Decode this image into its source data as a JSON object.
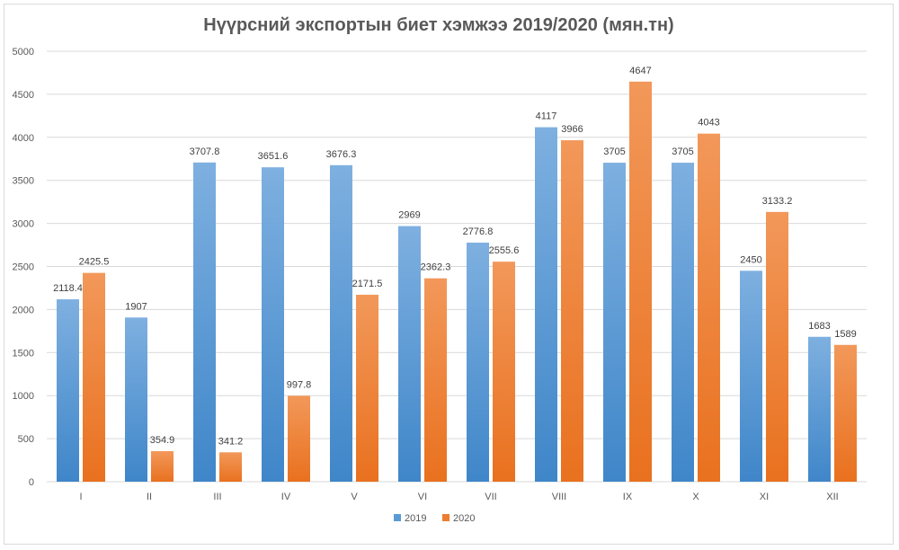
{
  "colors": {
    "series_2019": "#5b9bd5",
    "series_2020": "#ed7d31",
    "grid": "#d9d9d9",
    "axis_text": "#595959"
  },
  "chart_data": {
    "type": "bar",
    "title": "Нүүрсний экспортын биет хэмжээ 2019/2020 (мян.тн)",
    "xlabel": "",
    "ylabel": "",
    "ylim": [
      0,
      5000
    ],
    "yticks": [
      0,
      500,
      1000,
      1500,
      2000,
      2500,
      3000,
      3500,
      4000,
      4500,
      5000
    ],
    "grid": true,
    "legend": "bottom-center",
    "categories": [
      "I",
      "II",
      "III",
      "IV",
      "V",
      "VI",
      "VII",
      "VIII",
      "IX",
      "X",
      "XI",
      "XII"
    ],
    "series": [
      {
        "name": "2019",
        "color_key": "series_2019",
        "values": [
          2118.4,
          1907,
          3707.8,
          3651.6,
          3676.3,
          2969,
          2776.8,
          4117,
          3705,
          3705,
          2450,
          1683
        ]
      },
      {
        "name": "2020",
        "color_key": "series_2020",
        "values": [
          2425.5,
          354.9,
          341.2,
          997.8,
          2171.5,
          2362.3,
          2555.6,
          3966,
          4647,
          4043,
          3133.2,
          1589
        ]
      }
    ]
  }
}
